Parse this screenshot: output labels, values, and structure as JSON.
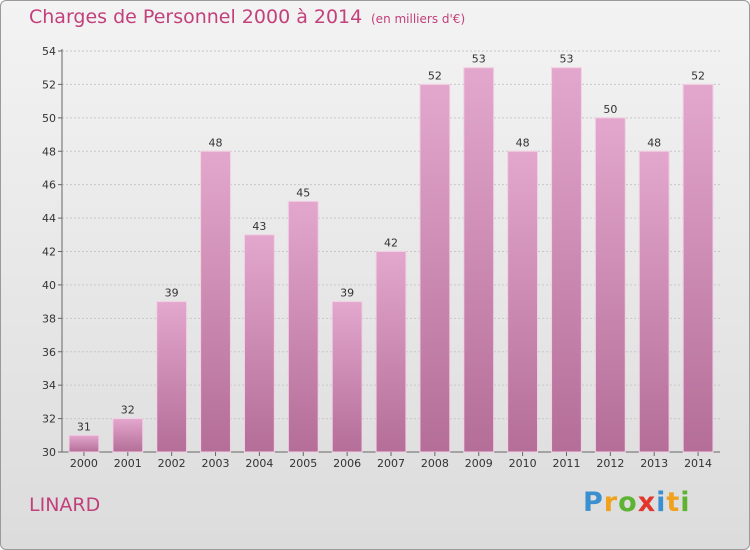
{
  "header": {
    "title": "Charges de Personnel 2000 à 2014",
    "subtitle": "(en milliers d'€)"
  },
  "footer": {
    "commune": "LINARD",
    "brand_letters": [
      {
        "char": "P",
        "color": "#3a8fd0"
      },
      {
        "char": "r",
        "color": "#f0a21e"
      },
      {
        "char": "o",
        "color": "#5fb333"
      },
      {
        "char": "x",
        "color": "#e2352c"
      },
      {
        "char": "i",
        "color": "#3a8fd0"
      },
      {
        "char": "t",
        "color": "#f0a21e"
      },
      {
        "char": "i",
        "color": "#5fb333"
      }
    ]
  },
  "colors": {
    "bar_light": "#e3a7cd",
    "bar_dark": "#b46e98",
    "accent": "#c2407b"
  },
  "chart_data": {
    "type": "bar",
    "title": "Charges de Personnel 2000 à 2014",
    "subtitle": "(en milliers d'€)",
    "categories": [
      "2000",
      "2001",
      "2002",
      "2003",
      "2004",
      "2005",
      "2006",
      "2007",
      "2008",
      "2009",
      "2010",
      "2011",
      "2012",
      "2013",
      "2014"
    ],
    "values": [
      31,
      32,
      39,
      48,
      43,
      45,
      39,
      42,
      52,
      53,
      48,
      53,
      50,
      48,
      52
    ],
    "ylim": [
      30,
      54
    ],
    "yticks": [
      30,
      32,
      34,
      36,
      38,
      40,
      42,
      44,
      46,
      48,
      50,
      52,
      54
    ],
    "grid": true,
    "legend": "none"
  }
}
